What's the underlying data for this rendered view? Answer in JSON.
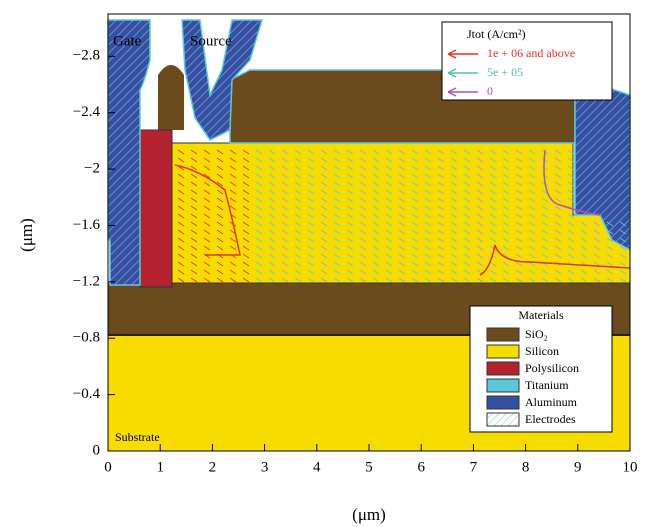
{
  "chart_data": {
    "type": "cross-section",
    "x_label": "(μm)",
    "y_label": "(μm)",
    "xlim": [
      0,
      10
    ],
    "ylim": [
      0,
      -3.1
    ],
    "xticks": [
      0,
      1,
      2,
      3,
      4,
      5,
      6,
      7,
      8,
      9,
      10
    ],
    "yticks": [
      {
        "value": -2.8,
        "label": "−2.8"
      },
      {
        "value": -2.4,
        "label": "−2.4"
      },
      {
        "value": -2,
        "label": "−2"
      },
      {
        "value": -1.6,
        "label": "−1.6"
      },
      {
        "value": -1.2,
        "label": "−1.2"
      },
      {
        "value": -0.8,
        "label": "−0.8"
      },
      {
        "value": -0.4,
        "label": "−0.4"
      },
      0
    ],
    "annotations": [
      "Gate",
      "Source",
      "Substrate"
    ],
    "legend": {
      "title": "Jtot (A/cm²)",
      "entries": [
        {
          "label": "1e + 06 and above",
          "color": "#e8302a"
        },
        {
          "label": "5e + 05",
          "color": "#4fc3a8"
        },
        {
          "label": "0",
          "color": "#b04fc0"
        }
      ]
    },
    "materials": {
      "title": "Materials",
      "entries": [
        {
          "name": "SiO₂",
          "color": "#6b4a1e"
        },
        {
          "name": "Silicon",
          "color": "#f7dc00"
        },
        {
          "name": "Polysilicon",
          "color": "#b3222e"
        },
        {
          "name": "Titanium",
          "color": "#5fc8d8"
        },
        {
          "name": "Aluminum",
          "color": "#3550a0"
        },
        {
          "name": "Electrodes",
          "color": "#ffffff"
        }
      ]
    }
  }
}
